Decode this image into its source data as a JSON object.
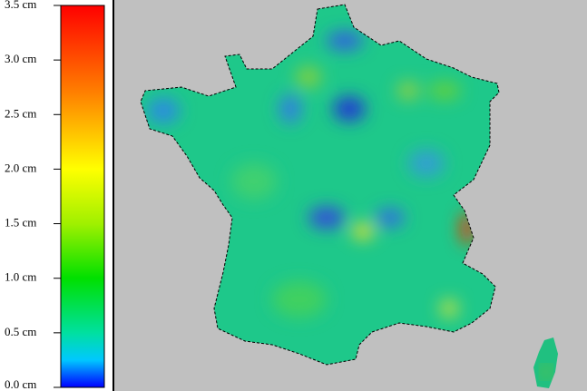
{
  "colorbar": {
    "min": 0,
    "max": 3.5,
    "ticks": [
      {
        "value": 0,
        "label": "0.0 cm"
      },
      {
        "value": 0.5,
        "label": "0.5 cm"
      },
      {
        "value": 1,
        "label": "1.0 cm"
      },
      {
        "value": 1.5,
        "label": "1.5 cm"
      },
      {
        "value": 2,
        "label": "2.0 cm"
      },
      {
        "value": 2.5,
        "label": "2.5 cm"
      },
      {
        "value": 3,
        "label": "3.0 cm"
      },
      {
        "value": 3.5,
        "label": "3.5 cm"
      }
    ],
    "stops": [
      {
        "value": 0,
        "color": "#0000ff"
      },
      {
        "value": 0.25,
        "color": "#00c8ff"
      },
      {
        "value": 0.5,
        "color": "#00e0a0"
      },
      {
        "value": 1,
        "color": "#00e000"
      },
      {
        "value": 1.5,
        "color": "#a0f000"
      },
      {
        "value": 2,
        "color": "#ffff00"
      },
      {
        "value": 2.7,
        "color": "#ff8000"
      },
      {
        "value": 3.5,
        "color": "#ff0000"
      }
    ]
  }
}
